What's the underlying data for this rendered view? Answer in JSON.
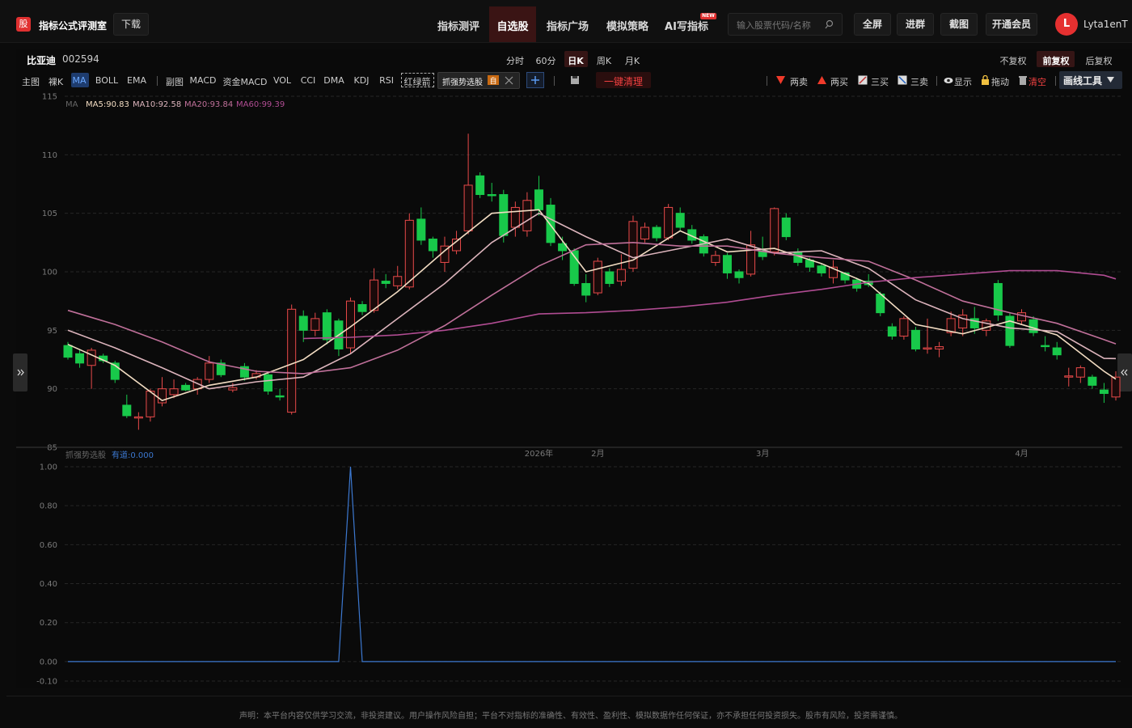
{
  "header": {
    "logo": "股",
    "app_name": "指标公式评测室",
    "download": "下载",
    "nav": [
      "指标测评",
      "自选股",
      "指标广场",
      "模拟策略",
      "AI写指标"
    ],
    "badge": "NEW",
    "search_placeholder": "输入股票代码/名称",
    "buttons": [
      "全屏",
      "进群",
      "截图",
      "开通会员"
    ],
    "avatar": "L",
    "username": "Lyta1enT"
  },
  "stock": {
    "name": "比亚迪",
    "code": "002594",
    "periods": [
      "分时",
      "60分",
      "日K",
      "周K",
      "月K"
    ],
    "adjust": [
      "不复权",
      "前复权",
      "后复权"
    ]
  },
  "toolbar": {
    "main_label": "主图",
    "main": [
      "裸K",
      "MA",
      "BOLL",
      "EMA"
    ],
    "sub_label": "副图",
    "sub": [
      "MACD",
      "资金MACD",
      "VOL",
      "CCI",
      "DMA",
      "KDJ",
      "RSI",
      "红绿箭"
    ],
    "indicator": "抓强势选股",
    "indicator_tag": "自",
    "clear": "一键清理",
    "signals": [
      "两卖",
      "两买",
      "三买",
      "三卖"
    ],
    "tools": [
      "显示",
      "拖动",
      "清空"
    ],
    "draw_tools": "画线工具"
  },
  "footer": "声明：本平台内容仅供学习交流，非投资建议。用户操作风险自担；平台不对指标的准确性、有效性、盈利性、模拟数据作任何保证，亦不承担任何投资损失。股市有风险，投资需谨慎。",
  "chart_data": [
    {
      "type": "candlestick",
      "legend_title": "MA",
      "up_color": "#e84a4a",
      "down_color": "#18c94a",
      "grid": true,
      "ylim": [
        85,
        115
      ],
      "yticks": [
        85,
        90,
        95,
        100,
        105,
        110,
        115
      ],
      "categories": [
        null,
        null,
        null,
        null,
        null,
        null,
        null,
        null,
        null,
        null,
        null,
        null,
        null,
        null,
        null,
        null,
        null,
        null,
        null,
        null,
        null,
        null,
        null,
        null,
        null,
        null,
        null,
        null,
        null,
        null,
        null,
        null,
        null,
        null,
        null,
        null,
        null,
        null,
        null,
        null,
        "2026年",
        null,
        null,
        null,
        null,
        "2月",
        null,
        null,
        null,
        null,
        null,
        null,
        null,
        null,
        null,
        null,
        null,
        null,
        null,
        "3月",
        null,
        null,
        null,
        null,
        null,
        null,
        null,
        null,
        null,
        null,
        null,
        null,
        null,
        null,
        null,
        null,
        null,
        null,
        null,
        null,
        null,
        "4月",
        null,
        null,
        null,
        null,
        null,
        null,
        null,
        null
      ],
      "open": [
        93.7,
        93.0,
        92.0,
        92.8,
        92.2,
        88.6,
        87.5,
        87.6,
        88.8,
        89.5,
        90.3,
        90.0,
        90.8,
        92.2,
        89.9,
        91.9,
        91.0,
        91.2,
        89.4,
        88.0,
        96.2,
        95.0,
        96.5,
        95.8,
        93.5,
        97.2,
        96.7,
        99.2,
        98.8,
        98.7,
        104.5,
        102.8,
        100.8,
        101.8,
        103.5,
        108.2,
        106.6,
        106.6,
        103.8,
        103.5,
        107.0,
        105.7,
        102.4,
        101.8,
        99.0,
        98.2,
        100.0,
        99.2,
        100.3,
        102.8,
        103.8,
        102.9,
        105.0,
        103.6,
        103.0,
        100.8,
        101.4,
        100.0,
        99.8,
        101.8,
        101.7,
        104.6,
        101.7,
        101.0,
        100.5,
        99.5,
        99.9,
        99.3,
        99.2,
        98.1,
        95.3,
        94.5,
        95.0,
        93.4,
        93.4,
        94.8,
        95.2,
        96.0,
        95.0,
        99.0,
        96.2,
        95.8,
        95.9,
        93.7,
        93.5,
        91.0,
        91.0,
        91.0,
        89.9,
        89.3
      ],
      "high": [
        94.0,
        93.3,
        93.5,
        93.0,
        92.4,
        89.5,
        88.0,
        90.0,
        91.0,
        90.8,
        90.5,
        91.0,
        92.8,
        92.5,
        90.5,
        92.2,
        91.6,
        91.5,
        90.0,
        97.2,
        96.7,
        96.5,
        96.8,
        96.0,
        97.8,
        97.5,
        100.3,
        99.8,
        100.5,
        105.0,
        105.5,
        103.0,
        103.0,
        103.5,
        111.8,
        108.5,
        107.6,
        107.0,
        106.0,
        106.8,
        108.2,
        106.3,
        103.0,
        102.0,
        99.8,
        101.2,
        100.3,
        101.5,
        104.8,
        104.2,
        104.0,
        105.8,
        105.5,
        104.0,
        103.2,
        101.8,
        101.6,
        100.2,
        103.5,
        103.0,
        105.5,
        105.0,
        102.0,
        101.2,
        100.7,
        101.0,
        100.0,
        99.5,
        99.8,
        98.3,
        95.6,
        96.2,
        95.3,
        96.0,
        94.0,
        96.6,
        96.8,
        97.0,
        96.0,
        99.3,
        96.5,
        96.8,
        96.2,
        94.5,
        94.0,
        91.8,
        92.0,
        91.2,
        90.5,
        91.5
      ],
      "low": [
        92.5,
        91.8,
        90.0,
        92.2,
        90.5,
        87.5,
        86.5,
        87.2,
        88.5,
        89.2,
        89.8,
        89.5,
        90.5,
        91.0,
        89.7,
        90.7,
        90.8,
        89.5,
        89.0,
        87.8,
        94.0,
        94.5,
        93.8,
        92.8,
        93.0,
        96.3,
        96.5,
        98.6,
        98.5,
        98.5,
        102.3,
        101.2,
        100.0,
        101.5,
        103.2,
        106.3,
        106.0,
        102.5,
        103.0,
        103.0,
        104.8,
        102.2,
        101.0,
        98.8,
        97.4,
        98.0,
        98.7,
        98.8,
        100.0,
        102.5,
        102.6,
        102.7,
        103.5,
        102.4,
        101.3,
        100.5,
        99.4,
        99.0,
        99.6,
        101.0,
        101.4,
        102.7,
        100.5,
        100.0,
        99.6,
        99.0,
        99.0,
        98.3,
        98.7,
        96.2,
        94.2,
        94.2,
        93.2,
        93.0,
        92.7,
        94.5,
        94.5,
        94.7,
        94.5,
        95.8,
        93.5,
        95.5,
        94.5,
        93.2,
        92.5,
        90.2,
        90.5,
        90.0,
        88.8,
        89.0
      ],
      "close": [
        92.7,
        92.2,
        93.3,
        92.4,
        90.8,
        87.7,
        87.6,
        89.8,
        90.0,
        90.0,
        89.9,
        90.8,
        92.2,
        91.2,
        90.1,
        91.0,
        91.3,
        89.8,
        89.3,
        96.8,
        95.0,
        96.0,
        94.2,
        93.4,
        97.5,
        96.6,
        99.3,
        99.0,
        99.6,
        104.4,
        102.7,
        101.8,
        102.2,
        102.8,
        107.4,
        106.6,
        106.5,
        103.1,
        105.5,
        106.1,
        105.3,
        102.5,
        101.8,
        99.0,
        98.0,
        100.9,
        99.0,
        100.2,
        104.3,
        103.8,
        102.9,
        105.5,
        103.8,
        102.7,
        101.6,
        101.4,
        99.9,
        99.5,
        102.3,
        101.3,
        105.4,
        103.0,
        100.8,
        100.4,
        99.9,
        100.4,
        99.3,
        98.6,
        98.9,
        96.5,
        94.5,
        96.0,
        93.4,
        93.5,
        93.6,
        96.0,
        96.3,
        95.2,
        95.8,
        96.3,
        93.7,
        96.5,
        94.8,
        93.6,
        92.9,
        91.1,
        91.8,
        90.3,
        89.6,
        91.0
      ],
      "series": [
        {
          "name": "MA5:90.83",
          "color": "#f2dcc2",
          "x": [
            0,
            4,
            8,
            12,
            16,
            20,
            24,
            28,
            32,
            36,
            40,
            44,
            48,
            52,
            56,
            60,
            64,
            68,
            72,
            76,
            80,
            84,
            88,
            89
          ],
          "values": [
            93.8,
            92.0,
            89.0,
            90.3,
            91.0,
            92.5,
            95.3,
            98.3,
            101.8,
            105.0,
            105.3,
            100.0,
            101.0,
            103.5,
            101.7,
            102.0,
            100.7,
            99.0,
            95.5,
            94.7,
            95.8,
            94.6,
            91.5,
            90.83
          ]
        },
        {
          "name": "MA10:92.58",
          "color": "#dcb4bc",
          "x": [
            0,
            4,
            8,
            12,
            16,
            20,
            24,
            28,
            32,
            36,
            40,
            44,
            48,
            52,
            56,
            60,
            64,
            68,
            72,
            76,
            80,
            84,
            88,
            89
          ],
          "values": [
            95.0,
            93.5,
            91.8,
            90.0,
            90.6,
            91.0,
            93.0,
            96.0,
            99.0,
            102.5,
            105.0,
            103.0,
            101.2,
            102.0,
            102.8,
            101.6,
            101.8,
            100.3,
            97.6,
            96.0,
            95.2,
            94.9,
            92.6,
            92.58
          ]
        },
        {
          "name": "MA20:93.84",
          "color": "#c0709a",
          "x": [
            0,
            4,
            8,
            12,
            16,
            20,
            24,
            28,
            32,
            36,
            40,
            44,
            48,
            52,
            56,
            60,
            64,
            68,
            72,
            76,
            80,
            84,
            88,
            89
          ],
          "values": [
            96.7,
            95.5,
            94.0,
            92.3,
            91.5,
            91.3,
            91.8,
            93.3,
            95.4,
            98.0,
            100.5,
            102.3,
            102.5,
            102.2,
            102.2,
            101.6,
            101.2,
            100.9,
            99.3,
            97.5,
            96.5,
            95.6,
            94.2,
            93.84
          ]
        },
        {
          "name": "MA60:99.39",
          "color": "#b04c92",
          "x": [
            20,
            24,
            28,
            32,
            36,
            40,
            44,
            48,
            52,
            56,
            60,
            64,
            68,
            72,
            76,
            80,
            84,
            88,
            89
          ],
          "values": [
            94.3,
            94.4,
            94.6,
            95.0,
            95.6,
            96.4,
            96.5,
            96.7,
            97.0,
            97.4,
            98.0,
            98.5,
            99.1,
            99.5,
            99.8,
            100.1,
            100.1,
            99.7,
            99.39
          ]
        }
      ]
    },
    {
      "type": "line",
      "legend_title": "抓强势选股",
      "grid": true,
      "ylim": [
        -0.1,
        1.0
      ],
      "yticks": [
        {
          "value": -0.1,
          "label": "-0.10"
        },
        {
          "value": 0,
          "label": "0.00"
        },
        {
          "value": 0.2,
          "label": "0.20"
        },
        {
          "value": 0.4,
          "label": "0.40"
        },
        {
          "value": 0.6,
          "label": "0.60"
        },
        {
          "value": 0.8,
          "label": "0.80"
        },
        {
          "value": 1.0,
          "label": "1.00"
        }
      ],
      "series": [
        {
          "name": "有道:0.000",
          "color": "#3c78d0",
          "values": [
            0,
            0,
            0,
            0,
            0,
            0,
            0,
            0,
            0,
            0,
            0,
            0,
            0,
            0,
            0,
            0,
            0,
            0,
            0,
            0,
            0,
            0,
            0,
            0,
            1,
            0,
            0,
            0,
            0,
            0,
            0,
            0,
            0,
            0,
            0,
            0,
            0,
            0,
            0,
            0,
            0,
            0,
            0,
            0,
            0,
            0,
            0,
            0,
            0,
            0,
            0,
            0,
            0,
            0,
            0,
            0,
            0,
            0,
            0,
            0,
            0,
            0,
            0,
            0,
            0,
            0,
            0,
            0,
            0,
            0,
            0,
            0,
            0,
            0,
            0,
            0,
            0,
            0,
            0,
            0,
            0,
            0,
            0,
            0,
            0,
            0,
            0,
            0,
            0,
            0
          ]
        }
      ]
    }
  ]
}
